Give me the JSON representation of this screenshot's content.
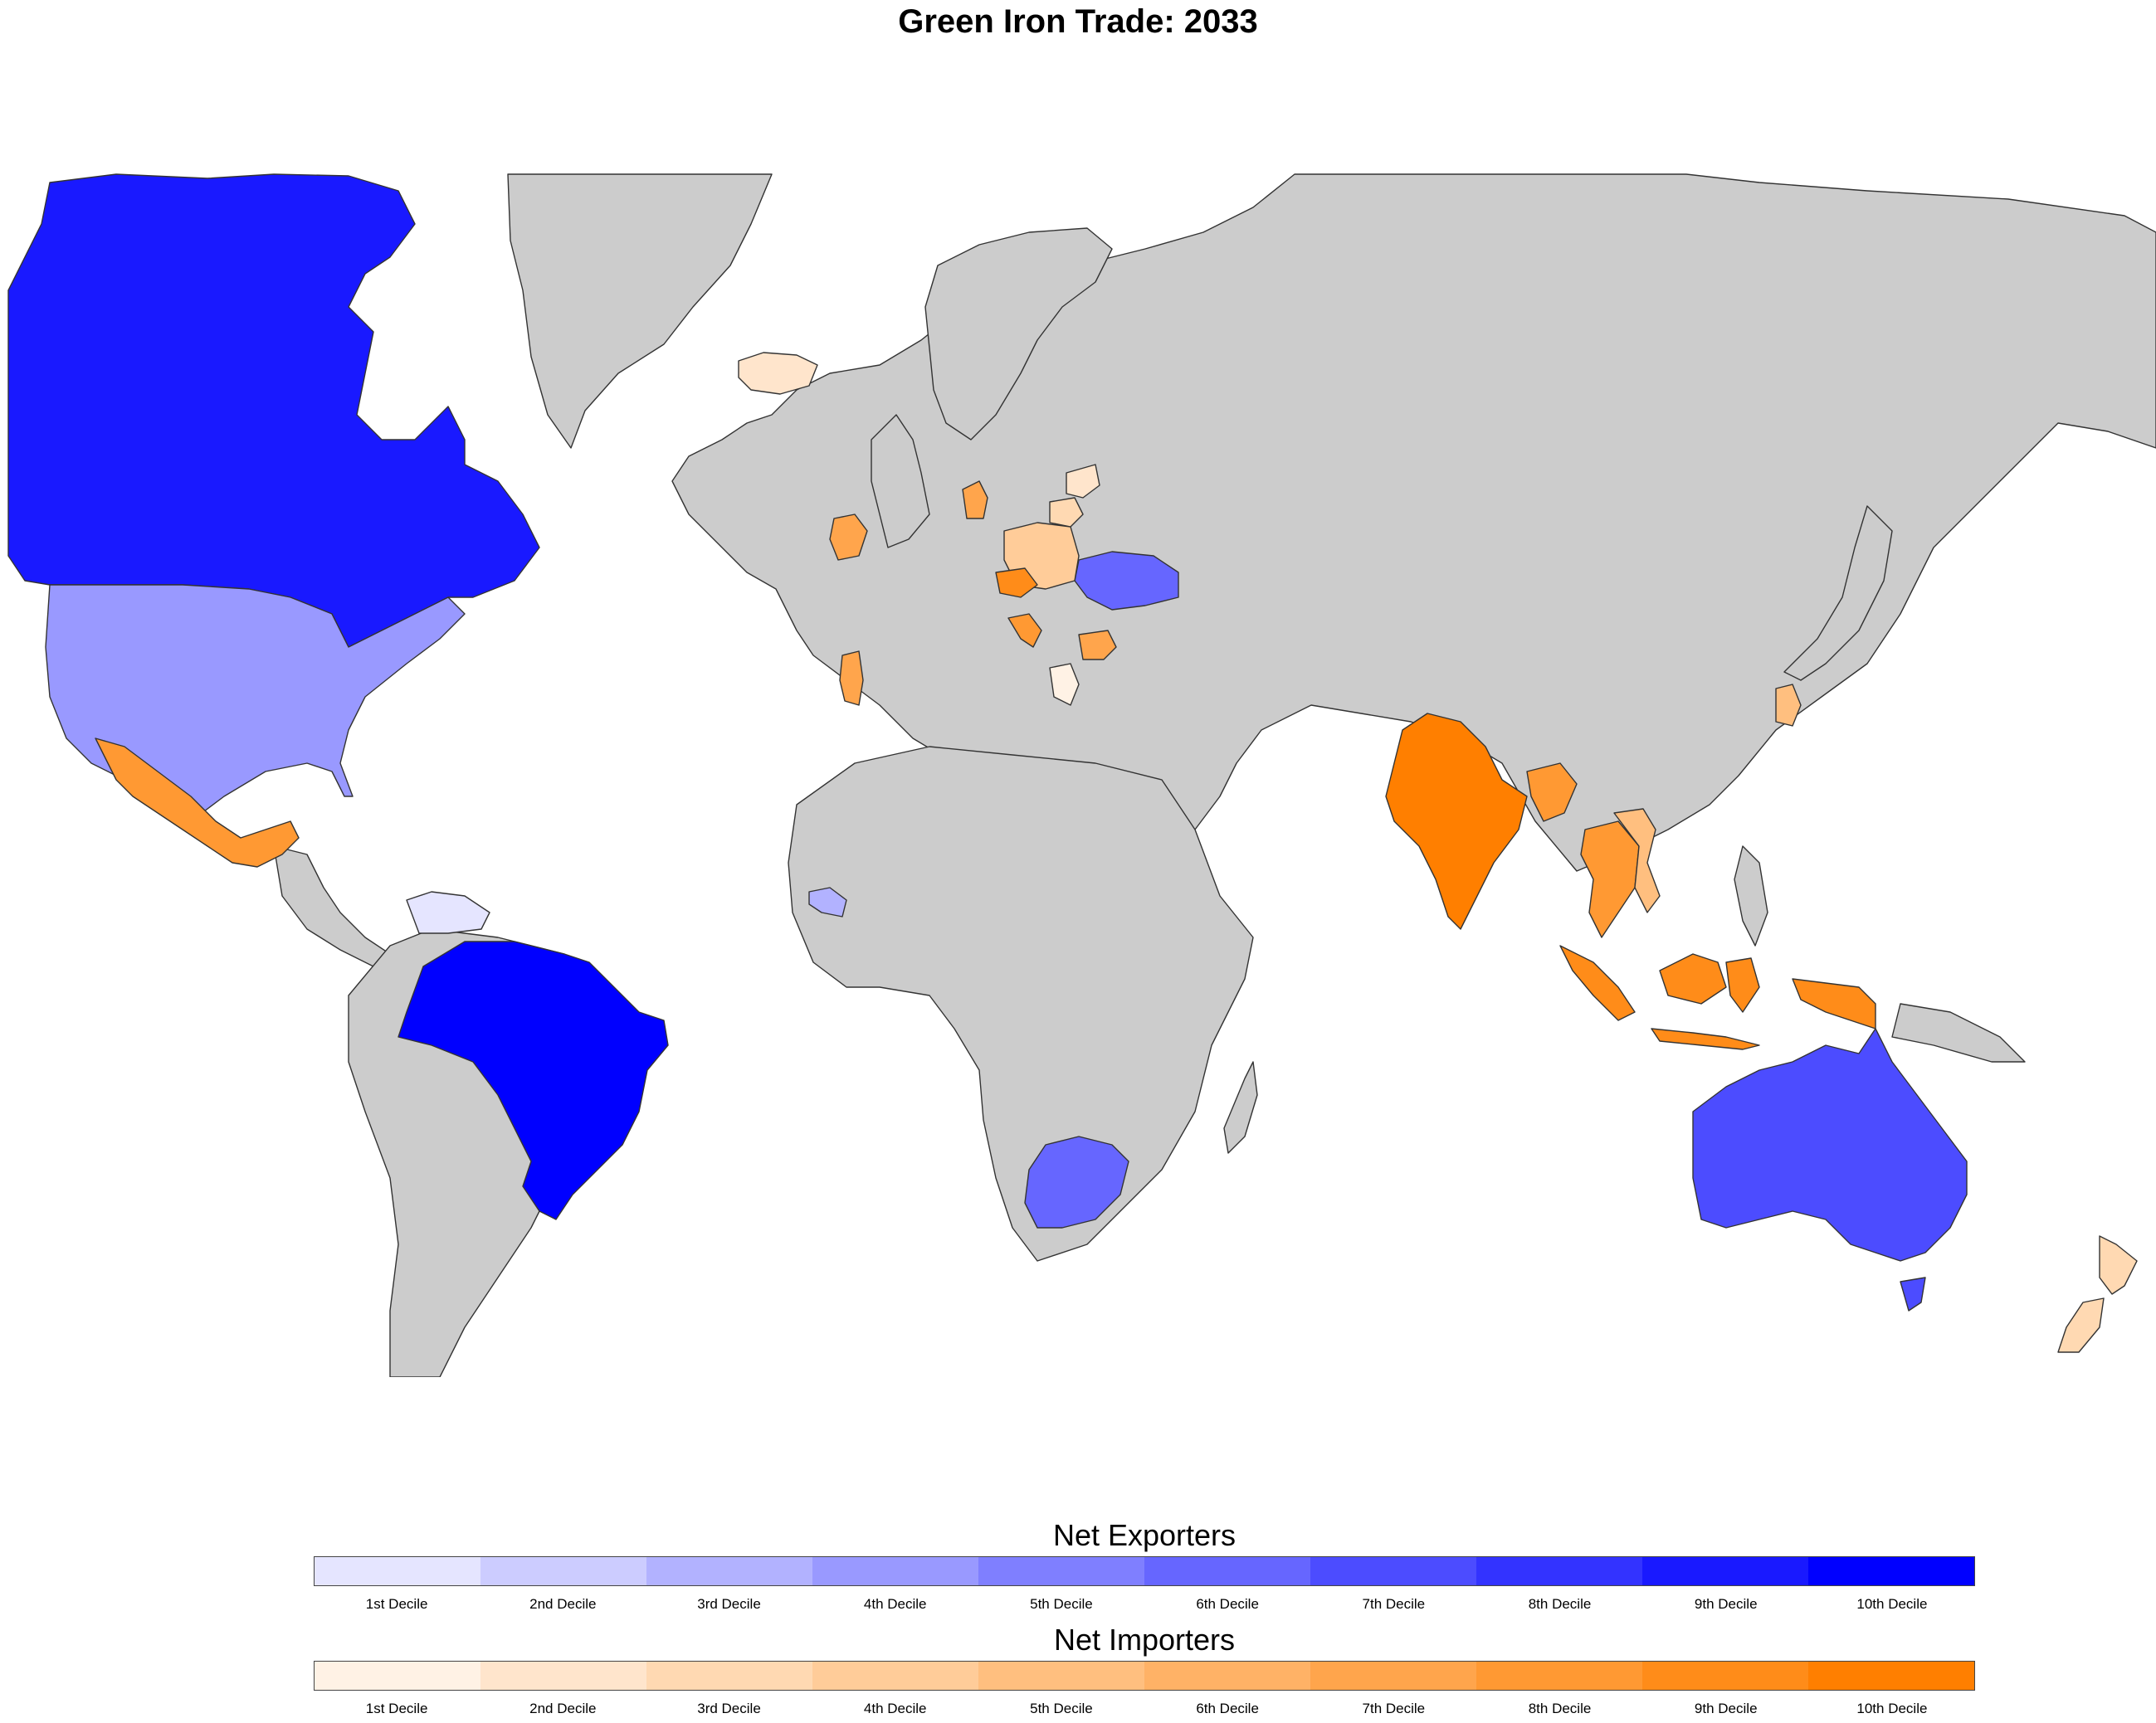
{
  "title": "Green Iron Trade: 2033",
  "colors": {
    "no_data": "#cccccc",
    "exporters": [
      "#e5e5ff",
      "#ccccff",
      "#b2b2ff",
      "#9999ff",
      "#7f7fff",
      "#6666ff",
      "#4c4cff",
      "#3333ff",
      "#1919ff",
      "#0000ff"
    ],
    "importers": [
      "#fff2e5",
      "#ffe5cc",
      "#ffd9b2",
      "#ffcc99",
      "#ffbf7f",
      "#ffb266",
      "#ffa54c",
      "#ff9933",
      "#ff8c19",
      "#ff7f00"
    ]
  },
  "legend": {
    "exporters_title": "Net Exporters",
    "importers_title": "Net Importers",
    "decile_labels": [
      "1st Decile",
      "2nd Decile",
      "3rd Decile",
      "4th Decile",
      "5th Decile",
      "6th Decile",
      "7th Decile",
      "8th Decile",
      "9th Decile",
      "10th Decile"
    ]
  },
  "map_data": {
    "exporters": [
      {
        "country": "Canada",
        "decile": 9
      },
      {
        "country": "United States",
        "decile": 4
      },
      {
        "country": "Brazil",
        "decile": 10
      },
      {
        "country": "Venezuela",
        "decile": 1
      },
      {
        "country": "Guinea",
        "decile": 3
      },
      {
        "country": "Ukraine",
        "decile": 6
      },
      {
        "country": "South Africa",
        "decile": 6
      },
      {
        "country": "Australia",
        "decile": 7
      }
    ],
    "importers": [
      {
        "country": "Mexico",
        "decile": 8
      },
      {
        "country": "Iceland",
        "decile": 2
      },
      {
        "country": "Ireland",
        "decile": 7
      },
      {
        "country": "Portugal",
        "decile": 7
      },
      {
        "country": "Denmark",
        "decile": 7
      },
      {
        "country": "Poland",
        "decile": 4
      },
      {
        "country": "Lithuania",
        "decile": 3
      },
      {
        "country": "Latvia",
        "decile": 2
      },
      {
        "country": "Czechia",
        "decile": 9
      },
      {
        "country": "Croatia",
        "decile": 8
      },
      {
        "country": "Bulgaria",
        "decile": 7
      },
      {
        "country": "Greece",
        "decile": 1
      },
      {
        "country": "India",
        "decile": 10
      },
      {
        "country": "Bangladesh",
        "decile": 8
      },
      {
        "country": "Thailand",
        "decile": 8
      },
      {
        "country": "Vietnam",
        "decile": 5
      },
      {
        "country": "Indonesia",
        "decile": 9
      },
      {
        "country": "South Korea",
        "decile": 5
      },
      {
        "country": "New Zealand",
        "decile": 3
      }
    ]
  }
}
